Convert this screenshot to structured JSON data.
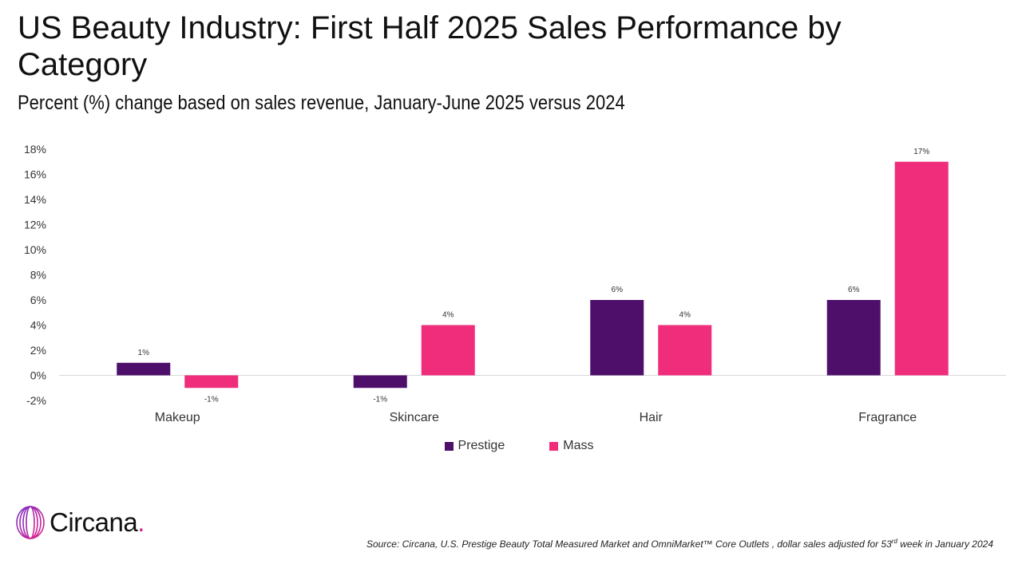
{
  "title": "US Beauty Industry: First Half 2025 Sales Performance by Category",
  "subtitle": "Percent (%) change based on sales revenue, January-June 2025 versus 2024",
  "colors": {
    "prestige": "#4e0f6b",
    "mass": "#ef2d7b",
    "axis": "#d9d9d9",
    "text": "#333333"
  },
  "chart_data": {
    "type": "bar",
    "categories": [
      "Makeup",
      "Skincare",
      "Hair",
      "Fragrance"
    ],
    "series": [
      {
        "name": "Prestige",
        "values": [
          1,
          -1,
          6,
          6
        ]
      },
      {
        "name": "Mass",
        "values": [
          -1,
          4,
          4,
          17
        ]
      }
    ],
    "data_labels": [
      [
        "1%",
        "-1%",
        "6%",
        "6%"
      ],
      [
        "-1%",
        "4%",
        "4%",
        "17%"
      ]
    ],
    "ylim": [
      -2,
      18
    ],
    "yticks": [
      "-2%",
      "0%",
      "2%",
      "4%",
      "6%",
      "8%",
      "10%",
      "12%",
      "14%",
      "16%",
      "18%"
    ],
    "xlabel": "",
    "ylabel": "",
    "grid": false,
    "legend_position": "bottom"
  },
  "legend": {
    "prestige": "Prestige",
    "mass": "Mass"
  },
  "logo": {
    "name": "Circana",
    "dot": "."
  },
  "source": {
    "before": "Source: Circana, U.S. Prestige Beauty Total Measured Market and OmniMarket™ Core Outlets , dollar sales adjusted for 53",
    "sup": "rd",
    "after": " week in January 2024"
  }
}
